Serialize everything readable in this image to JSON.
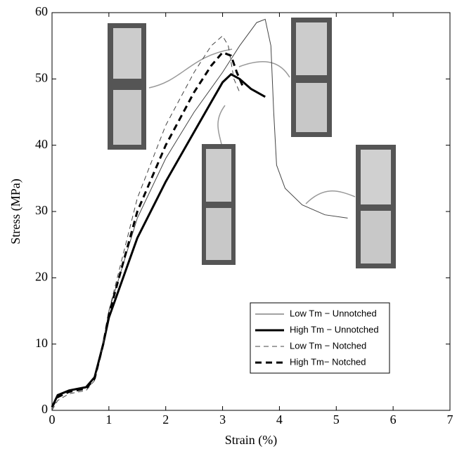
{
  "chart_data": {
    "type": "line",
    "xlabel": "Strain (%)",
    "ylabel": "Stress (MPa)",
    "xlim": [
      0,
      7
    ],
    "ylim": [
      0,
      60
    ],
    "xticks": [
      0,
      1,
      2,
      3,
      4,
      5,
      6,
      7
    ],
    "yticks": [
      0,
      10,
      20,
      30,
      40,
      50,
      60
    ],
    "legend": "lower right",
    "series": [
      {
        "name": "Low Tm − Unnotched",
        "color": "#444444",
        "width": 1,
        "dashed": false,
        "x": [
          0,
          0.1,
          0.3,
          0.6,
          0.75,
          0.9,
          1.0,
          1.5,
          2.0,
          2.5,
          3.0,
          3.3,
          3.6,
          3.75,
          3.85,
          3.9,
          3.95,
          4.1,
          4.4,
          4.8,
          5.2
        ],
        "values": [
          0.5,
          2.2,
          3,
          3.5,
          5,
          10,
          15,
          29,
          38,
          45,
          51,
          55,
          58.5,
          59,
          55,
          45,
          37,
          33.5,
          31,
          29.5,
          29
        ]
      },
      {
        "name": "High Tm − Unnotched",
        "color": "#000000",
        "width": 3,
        "dashed": false,
        "x": [
          0,
          0.1,
          0.3,
          0.6,
          0.75,
          0.9,
          1.0,
          1.5,
          2.0,
          2.5,
          2.8,
          3.0,
          3.15,
          3.3,
          3.5,
          3.75
        ],
        "values": [
          0.5,
          2.3,
          3,
          3.5,
          5,
          10,
          14,
          26,
          34.5,
          42,
          46.5,
          49.5,
          50.7,
          50,
          48.5,
          47.3
        ]
      },
      {
        "name": "Low Tm − Notched",
        "color": "#444444",
        "width": 1,
        "dashed": true,
        "x": [
          0,
          0.1,
          0.3,
          0.6,
          0.75,
          0.9,
          1.0,
          1.5,
          2.0,
          2.5,
          2.8,
          3.0,
          3.1,
          3.2,
          3.3
        ],
        "values": [
          0,
          1.5,
          2.5,
          3,
          4.5,
          10,
          15,
          32,
          43,
          51,
          55,
          56.5,
          55,
          50,
          48
        ]
      },
      {
        "name": "High Tm− Notched",
        "color": "#000000",
        "width": 3,
        "dashed": true,
        "x": [
          0,
          0.1,
          0.3,
          0.6,
          0.75,
          0.9,
          1.0,
          1.5,
          2.0,
          2.5,
          2.8,
          3.0,
          3.15,
          3.25,
          3.35
        ],
        "values": [
          0.5,
          2,
          2.8,
          3.3,
          4.8,
          10,
          14.5,
          30,
          40,
          48,
          52,
          54,
          53.5,
          51,
          49
        ]
      }
    ]
  }
}
